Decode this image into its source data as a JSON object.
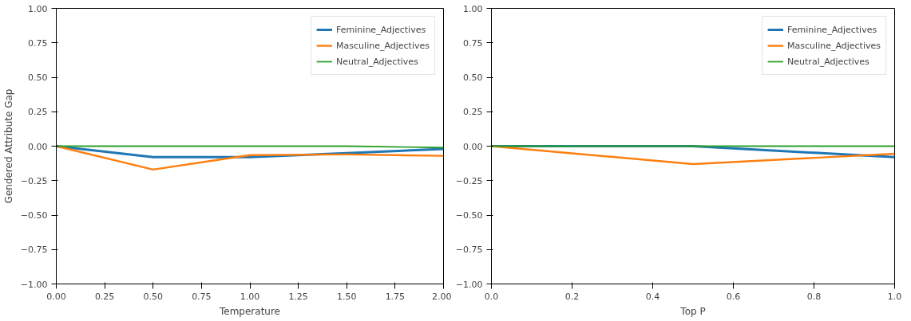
{
  "chart_data": [
    {
      "type": "line",
      "xlabel": "Temperature",
      "ylabel": "Gendered Attribute Gap",
      "x": [
        0,
        0.5,
        1,
        1.5,
        2
      ],
      "xlim": [
        0,
        2
      ],
      "ylim": [
        -1,
        1
      ],
      "xticks": [
        {
          "value": 0,
          "label": "0.00"
        },
        {
          "value": 0.25,
          "label": "0.25"
        },
        {
          "value": 0.5,
          "label": "0.50"
        },
        {
          "value": 0.75,
          "label": "0.75"
        },
        {
          "value": 1,
          "label": "1.00"
        },
        {
          "value": 1.25,
          "label": "1.25"
        },
        {
          "value": 1.5,
          "label": "1.50"
        },
        {
          "value": 1.75,
          "label": "1.75"
        },
        {
          "value": 2,
          "label": "2.00"
        }
      ],
      "yticks": [
        {
          "value": -1,
          "label": "−1.00"
        },
        {
          "value": -0.75,
          "label": "−0.75"
        },
        {
          "value": -0.5,
          "label": "−0.50"
        },
        {
          "value": -0.25,
          "label": "−0.25"
        },
        {
          "value": 0,
          "label": "0.00"
        },
        {
          "value": 0.25,
          "label": "0.25"
        },
        {
          "value": 0.5,
          "label": "0.50"
        },
        {
          "value": 0.75,
          "label": "0.75"
        },
        {
          "value": 1,
          "label": "1.00"
        }
      ],
      "legend": "top right",
      "grid": false,
      "series": [
        {
          "name": "Feminine_Adjectives",
          "color": "#1f77b4",
          "values": [
            0,
            -0.08,
            -0.08,
            -0.05,
            -0.02
          ]
        },
        {
          "name": "Masculine_Adjectives",
          "color": "#ff7f0e",
          "values": [
            0,
            -0.17,
            -0.065,
            -0.06,
            -0.07
          ]
        },
        {
          "name": "Neutral_Adjectives",
          "color": "#2ca02c",
          "values": [
            0,
            0,
            0,
            0,
            -0.01
          ]
        }
      ]
    },
    {
      "type": "line",
      "xlabel": "Top P",
      "x": [
        0,
        0.5,
        1
      ],
      "xlim": [
        0,
        1
      ],
      "ylim": [
        -1,
        1
      ],
      "xticks": [
        {
          "value": 0,
          "label": "0.0"
        },
        {
          "value": 0.2,
          "label": "0.2"
        },
        {
          "value": 0.4,
          "label": "0.4"
        },
        {
          "value": 0.6,
          "label": "0.6"
        },
        {
          "value": 0.8,
          "label": "0.8"
        },
        {
          "value": 1,
          "label": "1.0"
        }
      ],
      "yticks": [
        {
          "value": -1,
          "label": "−1.00"
        },
        {
          "value": -0.75,
          "label": "−0.75"
        },
        {
          "value": -0.5,
          "label": "−0.50"
        },
        {
          "value": -0.25,
          "label": "−0.25"
        },
        {
          "value": 0,
          "label": "0.00"
        },
        {
          "value": 0.25,
          "label": "0.25"
        },
        {
          "value": 0.5,
          "label": "0.50"
        },
        {
          "value": 0.75,
          "label": "0.75"
        },
        {
          "value": 1,
          "label": "1.00"
        }
      ],
      "legend": "top right",
      "grid": false,
      "series": [
        {
          "name": "Feminine_Adjectives",
          "color": "#1f77b4",
          "values": [
            0,
            0,
            -0.08
          ]
        },
        {
          "name": "Masculine_Adjectives",
          "color": "#ff7f0e",
          "values": [
            0,
            -0.13,
            -0.055
          ]
        },
        {
          "name": "Neutral_Adjectives",
          "color": "#2ca02c",
          "values": [
            0,
            0,
            0
          ]
        }
      ]
    }
  ]
}
